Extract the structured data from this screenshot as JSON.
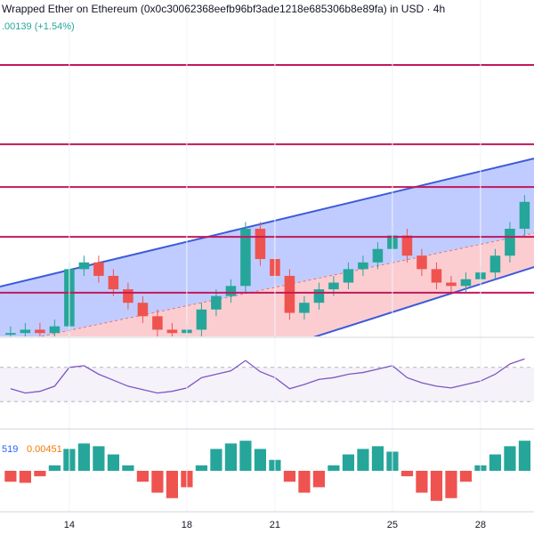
{
  "chart_data": {
    "type": "candlestick",
    "title": "Wrapped Ether on Ethereum (0x0c30062368eefb96bf3ade1218e685306b8e89fa) in USD · 4h",
    "change": ".00139 (+1.54%)",
    "xlim": [
      11.64,
      29.82
    ],
    "xticks": [
      14,
      18,
      21,
      25,
      28
    ],
    "ylim": [
      0,
      100
    ],
    "x": [
      12,
      12.5,
      13,
      13.5,
      14,
      14.5,
      15,
      15.5,
      16,
      16.5,
      17,
      17.5,
      18,
      18.5,
      19,
      19.5,
      20,
      20.5,
      21,
      21.5,
      22,
      22.5,
      23,
      23.5,
      24,
      24.5,
      25,
      25.5,
      26,
      26.5,
      27,
      27.5,
      28,
      28.5,
      29,
      29.5
    ],
    "open": [
      0.5,
      1,
      2,
      1,
      3,
      20,
      22,
      18,
      14,
      10,
      6,
      2,
      1,
      2,
      8,
      12,
      15,
      32,
      23,
      18,
      7,
      10,
      14,
      16,
      20,
      22,
      26,
      30,
      24,
      20,
      16,
      15,
      17,
      19,
      24,
      32
    ],
    "high": [
      3,
      4,
      4,
      5,
      22,
      24,
      24,
      20,
      16,
      12,
      8,
      4,
      4,
      10,
      14,
      17,
      34,
      34,
      25,
      20,
      12,
      16,
      18,
      22,
      24,
      28,
      32,
      32,
      26,
      22,
      18,
      19,
      21,
      26,
      34,
      42
    ],
    "low": [
      -1.5,
      -1,
      -1,
      -1,
      1,
      18,
      16,
      12,
      8,
      4,
      0,
      -1,
      -1,
      0,
      6,
      10,
      13,
      21,
      16,
      5,
      5,
      8,
      12,
      14,
      18,
      20,
      24,
      22,
      18,
      14,
      13,
      13,
      15,
      17,
      22,
      30
    ],
    "close": [
      1,
      2,
      1,
      3,
      20,
      22,
      18,
      14,
      10,
      6,
      2,
      1,
      2,
      8,
      12,
      15,
      32,
      23,
      18,
      7,
      10,
      14,
      16,
      20,
      22,
      26,
      30,
      24,
      20,
      16,
      15,
      17,
      19,
      24,
      32,
      40
    ],
    "up_color": "#26a69a",
    "down_color": "#ef5350",
    "hlines": [
      80.7,
      57.1,
      44.4,
      29.6,
      13.0
    ],
    "hline_color": "#c2185b",
    "channel": {
      "upper": [
        [
          11.64,
          14.8
        ],
        [
          29.82,
          52.9
        ]
      ],
      "mid": [
        [
          13.46,
          0.8
        ],
        [
          29.82,
          30.7
        ]
      ],
      "lower": [
        [
          22.4,
          0
        ],
        [
          29.82,
          20.6
        ]
      ],
      "line_color": "#3d5bd9"
    },
    "rsi": {
      "ylim": [
        0,
        100
      ],
      "levels": [
        30,
        70
      ],
      "color": "#7e57c2",
      "values": [
        45,
        40,
        42,
        48,
        70,
        72,
        62,
        55,
        48,
        44,
        40,
        42,
        46,
        58,
        62,
        66,
        78,
        65,
        58,
        45,
        50,
        56,
        58,
        62,
        64,
        68,
        72,
        58,
        52,
        48,
        46,
        50,
        54,
        62,
        74,
        80
      ]
    },
    "osc": {
      "label_a": "519",
      "label_b": "0.00451",
      "ylim": [
        -70,
        70
      ],
      "values": [
        -20,
        -22,
        -10,
        10,
        40,
        50,
        45,
        30,
        10,
        -20,
        -40,
        -50,
        -30,
        10,
        40,
        50,
        55,
        40,
        20,
        -20,
        -40,
        -30,
        10,
        30,
        40,
        45,
        35,
        -10,
        -40,
        -55,
        -50,
        -20,
        10,
        30,
        45,
        55
      ]
    }
  }
}
